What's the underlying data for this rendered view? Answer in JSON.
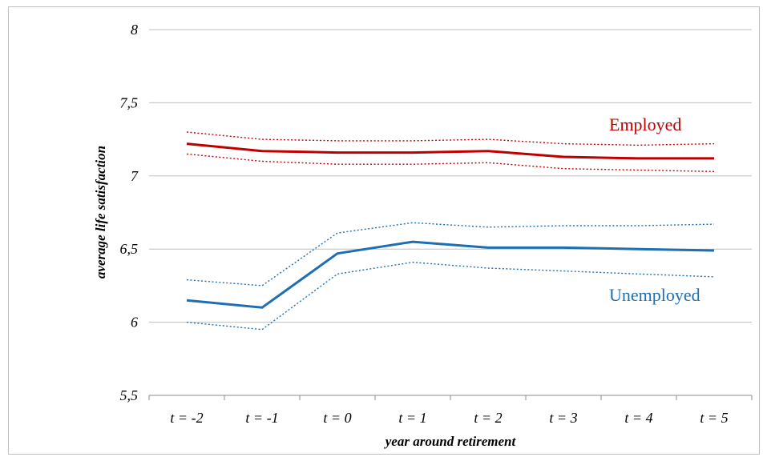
{
  "chart_data": {
    "type": "line",
    "xlabel": "year  around retirement",
    "ylabel": "average life satisfaction",
    "categories": [
      "t = -2",
      "t = -1",
      "t = 0",
      "t = 1",
      "t = 2",
      "t = 3",
      "t = 4",
      "t = 5"
    ],
    "ylim": [
      5.5,
      8
    ],
    "yticks": [
      "5,5",
      "6",
      "6,5",
      "7",
      "7,5",
      "8"
    ],
    "ytick_values": [
      5.5,
      6,
      6.5,
      7,
      7.5,
      8
    ],
    "grid": true,
    "legend": "none",
    "series": [
      {
        "name": "Employed",
        "role": "mean",
        "color": "#c00000",
        "dash": false,
        "values": [
          7.22,
          7.17,
          7.16,
          7.16,
          7.17,
          7.13,
          7.12,
          7.12
        ]
      },
      {
        "name": "",
        "role": "upper bound",
        "color": "#c00000",
        "dash": true,
        "values": [
          7.3,
          7.25,
          7.24,
          7.24,
          7.25,
          7.22,
          7.21,
          7.22
        ]
      },
      {
        "name": "",
        "role": "lower bound",
        "color": "#c00000",
        "dash": true,
        "values": [
          7.15,
          7.1,
          7.08,
          7.08,
          7.09,
          7.05,
          7.04,
          7.03
        ]
      },
      {
        "name": "Unemployed",
        "role": "mean",
        "color": "#1f6fb2",
        "dash": false,
        "values": [
          6.15,
          6.1,
          6.47,
          6.55,
          6.51,
          6.51,
          6.5,
          6.49
        ]
      },
      {
        "name": "",
        "role": "upper bound",
        "color": "#1f6fb2",
        "dash": true,
        "values": [
          6.29,
          6.25,
          6.61,
          6.68,
          6.65,
          6.66,
          6.66,
          6.67
        ]
      },
      {
        "name": "",
        "role": "lower bound",
        "color": "#1f6fb2",
        "dash": true,
        "values": [
          6.0,
          5.95,
          6.33,
          6.41,
          6.37,
          6.35,
          6.33,
          6.31
        ]
      }
    ],
    "annotations": [
      {
        "text": "Employed",
        "color": "#c00000"
      },
      {
        "text": "Unemployed",
        "color": "#1f6fb2"
      }
    ]
  }
}
